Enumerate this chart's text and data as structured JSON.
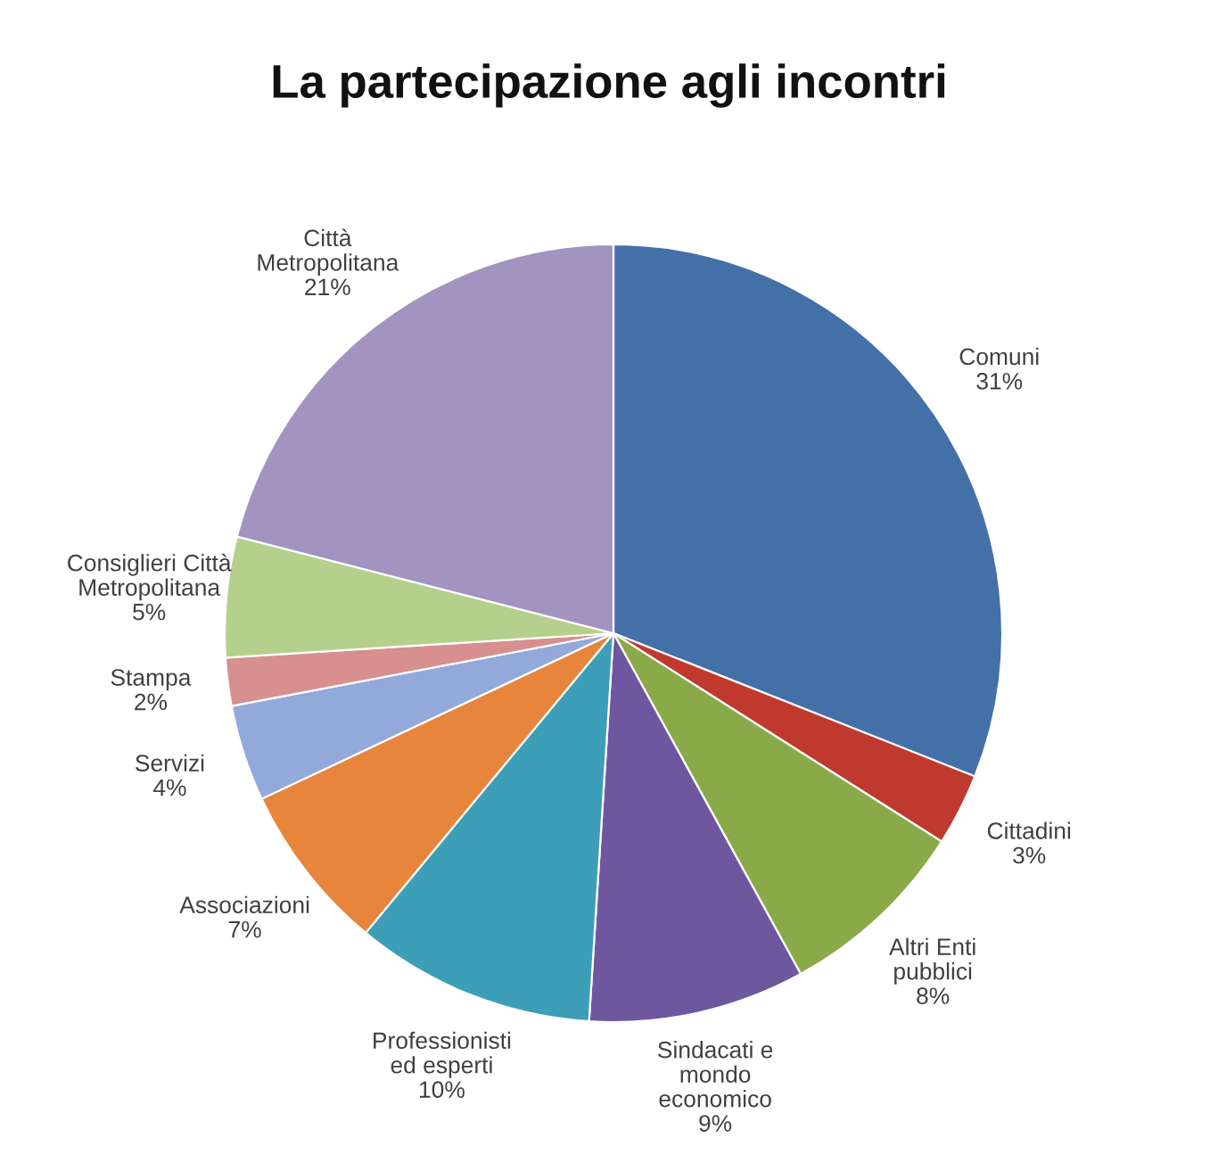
{
  "chart_data": {
    "type": "pie",
    "title": "La partecipazione agli incontri",
    "categories": [
      "Comuni",
      "Cittadini",
      "Altri Enti\npubblici",
      "Sindacati e\nmondo\neconomico",
      "Professionisti\ned esperti",
      "Associazioni",
      "Servizi",
      "Stampa",
      "Consiglieri Città\nMetropolitana",
      "Città\nMetropolitana"
    ],
    "values": [
      31,
      3,
      8,
      9,
      10,
      7,
      4,
      2,
      5,
      21
    ],
    "value_labels": [
      "31%",
      "3%",
      "8%",
      "9%",
      "10%",
      "7%",
      "4%",
      "2%",
      "5%",
      "21%"
    ],
    "colors": [
      "#4470a8",
      "#c0392f",
      "#8aaa4a",
      "#6f57a0",
      "#3d9eb8",
      "#e8853c",
      "#92a9d9",
      "#d88f8f",
      "#b5d08c",
      "#a293c0"
    ]
  }
}
